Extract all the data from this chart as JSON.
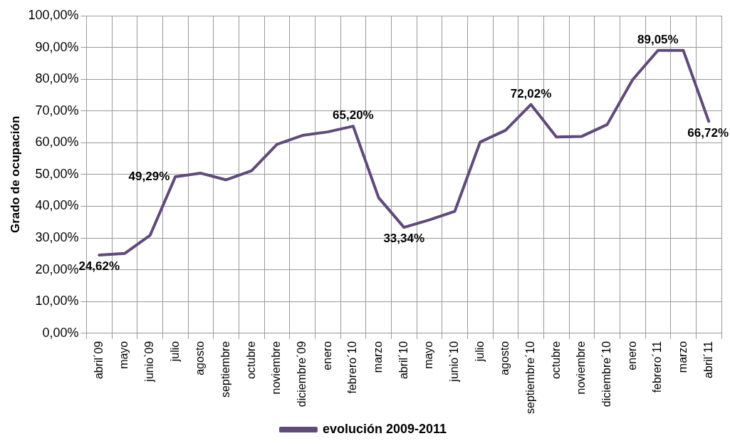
{
  "chart_data": {
    "type": "line",
    "ylabel": "Grado de ocupación",
    "categories": [
      "abril´09",
      "mayo",
      "junio`09",
      "julio",
      "agosto",
      "septiembre",
      "octubre",
      "noviembre",
      "diciembre´09",
      "enero",
      "febrero´10",
      "marzo",
      "abril´10",
      "mayo",
      "junio`10",
      "julio",
      "agosto",
      "septiembre´10",
      "octubre",
      "noviembre",
      "diciembre´10",
      "enero",
      "febrero´11",
      "marzo",
      "abril´11"
    ],
    "series": [
      {
        "name": "evolución 2009-2011",
        "color": "#604a7b",
        "values": [
          24.62,
          25.1,
          30.8,
          49.29,
          50.4,
          48.3,
          51.2,
          59.5,
          62.3,
          63.4,
          65.2,
          42.7,
          33.34,
          35.7,
          38.4,
          60.2,
          63.9,
          72.02,
          61.8,
          62.0,
          65.7,
          79.8,
          89.05,
          89.05,
          66.72
        ],
        "value_labels": [
          "24,62%",
          null,
          null,
          "49,29%",
          null,
          null,
          null,
          null,
          null,
          null,
          "65,20%",
          null,
          "33,34%",
          null,
          null,
          null,
          null,
          "72,02%",
          null,
          null,
          null,
          null,
          "89,05%",
          null,
          "66,72%"
        ]
      }
    ],
    "ylim": [
      0,
      100
    ],
    "yticks": [
      {
        "value": 0,
        "label": "0,00%"
      },
      {
        "value": 10,
        "label": "10,00%"
      },
      {
        "value": 20,
        "label": "20,00%"
      },
      {
        "value": 30,
        "label": "30,00%"
      },
      {
        "value": 40,
        "label": "40,00%"
      },
      {
        "value": 50,
        "label": "50,00%"
      },
      {
        "value": 60,
        "label": "60,00%"
      },
      {
        "value": 70,
        "label": "70,00%"
      },
      {
        "value": 80,
        "label": "80,00%"
      },
      {
        "value": 90,
        "label": "90,00%"
      },
      {
        "value": 100,
        "label": "100,00%"
      }
    ],
    "grid": true,
    "legend": "bottom",
    "marker": "none",
    "line_style": "solid"
  }
}
